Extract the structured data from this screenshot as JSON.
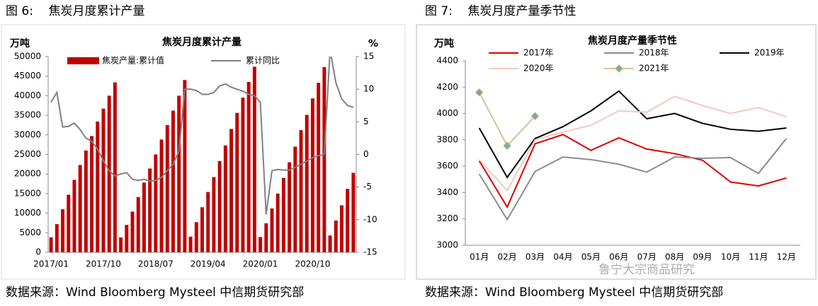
{
  "captions": [
    "图 6:    焦炭月度累计产量",
    "图 7:    焦炭月度产量季节性"
  ],
  "sources": [
    "数据来源：Wind Bloomberg Mysteel 中信期货研究部",
    "数据来源：Wind Bloomberg Mysteel 中信期货研究部"
  ],
  "watermark": "鲁宁大宗商品研究",
  "chart_data": [
    {
      "type": "combo",
      "title": "焦炭月度累计产量",
      "y_label": "万吨",
      "y2_label": "%",
      "categories": [
        "2017/01",
        null,
        null,
        null,
        null,
        null,
        null,
        null,
        null,
        "2017/10",
        null,
        null,
        null,
        null,
        null,
        null,
        null,
        null,
        "2018/07",
        null,
        null,
        null,
        null,
        null,
        null,
        null,
        null,
        "2019/04",
        null,
        null,
        null,
        null,
        null,
        null,
        null,
        null,
        "2020/01",
        null,
        null,
        null,
        null,
        null,
        null,
        null,
        null,
        "2020/10",
        null,
        null,
        null,
        null,
        null,
        null,
        null
      ],
      "series": [
        {
          "name": "焦炭产量:累计值",
          "type": "bar",
          "color": "#c00000",
          "values": [
            3800,
            7200,
            11000,
            14700,
            18500,
            22300,
            26000,
            29700,
            33400,
            36700,
            40000,
            43400,
            3800,
            7000,
            10400,
            14100,
            17800,
            21400,
            25000,
            28800,
            32500,
            36200,
            40000,
            44000,
            4000,
            7700,
            11500,
            15400,
            19200,
            23300,
            27300,
            31500,
            35600,
            39500,
            43500,
            47400,
            3900,
            7400,
            11200,
            15000,
            19000,
            23000,
            27000,
            31200,
            35100,
            39300,
            43300,
            47300,
            4300,
            8100,
            12000,
            16200,
            20300
          ]
        },
        {
          "name": "累计同比",
          "type": "line",
          "axis": "y2",
          "color": "#808080",
          "values": [
            8,
            9.5,
            4.2,
            4.3,
            4.8,
            3.8,
            2.5,
            2.0,
            0.8,
            -1.0,
            -2.5,
            -3.3,
            -3.0,
            -2.8,
            -3.8,
            -4.0,
            -3.8,
            -4.1,
            -4.0,
            -3.5,
            -2.5,
            -1.5,
            0.5,
            10,
            10,
            9.8,
            9.2,
            9.2,
            9.5,
            10.5,
            10.8,
            10.3,
            10.0,
            9.7,
            9.2,
            9.0,
            8,
            -9.2,
            -2.5,
            -2.3,
            -2.4,
            -2.4,
            -2.0,
            -1.5,
            -1.0,
            -0.5,
            -0.2,
            0,
            16,
            11,
            8.5,
            7.5,
            7.2
          ]
        }
      ],
      "ylim": [
        0,
        50000
      ],
      "yticks": [
        0,
        5000,
        10000,
        15000,
        20000,
        25000,
        30000,
        35000,
        40000,
        45000,
        50000
      ],
      "y2lim": [
        -15,
        15
      ],
      "y2ticks": [
        -15,
        -10,
        -5,
        0,
        5,
        10,
        15
      ],
      "legend": "top"
    },
    {
      "type": "line",
      "title": "焦炭月度产量季节性",
      "y_label": "万吨",
      "categories": [
        "01月",
        "02月",
        "03月",
        "04月",
        "05月",
        "06月",
        "07月",
        "08月",
        "09月",
        "10月",
        "11月",
        "12月"
      ],
      "series": [
        {
          "name": "2017年",
          "color": "#e00000",
          "values": [
            3640,
            3290,
            3770,
            3840,
            3720,
            3815,
            3730,
            3695,
            3645,
            3480,
            3450,
            3510
          ]
        },
        {
          "name": "2018年",
          "color": "#8c8c8c",
          "values": [
            3540,
            3195,
            3560,
            3670,
            3650,
            3615,
            3555,
            3670,
            3660,
            3665,
            3545,
            3810
          ]
        },
        {
          "name": "2019年",
          "color": "#000000",
          "values": [
            3890,
            3515,
            3810,
            3900,
            4020,
            4170,
            3960,
            4000,
            3925,
            3880,
            3865,
            3890
          ]
        },
        {
          "name": "2020年",
          "color": "#f4c7c3",
          "values": [
            3650,
            3415,
            3800,
            3860,
            3910,
            4020,
            4010,
            4130,
            4060,
            4000,
            4045,
            3975
          ]
        },
        {
          "name": "2021年",
          "color": "#d9c39a",
          "marker_color": "#5fb3c9",
          "values": [
            4160,
            3755,
            3980,
            null,
            null,
            null,
            null,
            null,
            null,
            null,
            null,
            null
          ]
        }
      ],
      "ylim": [
        3000,
        4400
      ],
      "yticks": [
        3000,
        3200,
        3400,
        3600,
        3800,
        4000,
        4200,
        4400
      ],
      "legend": "top"
    }
  ]
}
